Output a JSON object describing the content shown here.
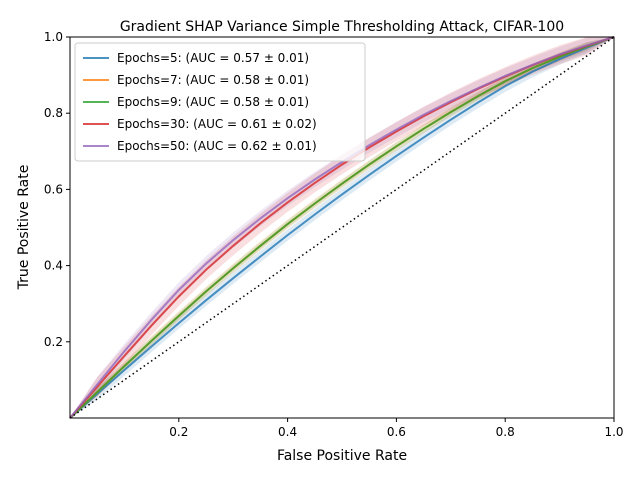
{
  "chart_data": {
    "type": "line",
    "title": "Gradient SHAP Variance Simple Thresholding Attack, CIFAR-100",
    "xlabel": "False Positive Rate",
    "ylabel": "True Positive Rate",
    "xlim": [
      0,
      1
    ],
    "ylim": [
      0,
      1
    ],
    "x_ticks": [
      "0.2",
      "0.4",
      "0.6",
      "0.8",
      "1.0"
    ],
    "y_ticks": [
      "0.2",
      "0.4",
      "0.6",
      "0.8",
      "1.0"
    ],
    "grid": false,
    "legend_position": "top-left",
    "x": [
      0,
      0.05,
      0.1,
      0.15,
      0.2,
      0.25,
      0.3,
      0.35,
      0.4,
      0.45,
      0.5,
      0.55,
      0.6,
      0.65,
      0.7,
      0.75,
      0.8,
      0.85,
      0.9,
      0.95,
      1.0
    ],
    "series": [
      {
        "name": "Epochs=5: (AUC = 0.57 ± 0.01)",
        "color": "#1f77b4",
        "values": [
          0,
          0.063,
          0.126,
          0.188,
          0.249,
          0.309,
          0.367,
          0.424,
          0.48,
          0.534,
          0.587,
          0.638,
          0.688,
          0.736,
          0.783,
          0.828,
          0.871,
          0.909,
          0.942,
          0.972,
          1.0
        ],
        "band": 0.015
      },
      {
        "name": "Epochs=7: (AUC = 0.58 ± 0.01)",
        "color": "#ff7f0e",
        "values": [
          0,
          0.068,
          0.136,
          0.203,
          0.268,
          0.332,
          0.393,
          0.452,
          0.509,
          0.563,
          0.615,
          0.665,
          0.713,
          0.759,
          0.803,
          0.845,
          0.884,
          0.918,
          0.948,
          0.975,
          1.0
        ],
        "band": 0.012
      },
      {
        "name": "Epochs=9: (AUC = 0.58 ± 0.01)",
        "color": "#2ca02c",
        "values": [
          0,
          0.068,
          0.136,
          0.203,
          0.268,
          0.332,
          0.393,
          0.452,
          0.509,
          0.563,
          0.615,
          0.665,
          0.713,
          0.759,
          0.803,
          0.845,
          0.884,
          0.918,
          0.948,
          0.975,
          1.0
        ],
        "band": 0.01
      },
      {
        "name": "Epochs=30: (AUC = 0.61 ± 0.02)",
        "color": "#d62728",
        "values": [
          0,
          0.082,
          0.163,
          0.243,
          0.319,
          0.389,
          0.452,
          0.511,
          0.566,
          0.617,
          0.665,
          0.71,
          0.752,
          0.792,
          0.829,
          0.864,
          0.896,
          0.926,
          0.953,
          0.977,
          1.0
        ],
        "band": 0.025
      },
      {
        "name": "Epochs=50: (AUC = 0.62 ± 0.01)",
        "color": "#9467bd",
        "values": [
          0,
          0.088,
          0.175,
          0.258,
          0.336,
          0.405,
          0.467,
          0.524,
          0.577,
          0.626,
          0.672,
          0.716,
          0.757,
          0.796,
          0.832,
          0.866,
          0.898,
          0.927,
          0.954,
          0.978,
          1.0
        ],
        "band": 0.02
      }
    ],
    "reference_line": {
      "style": "dotted",
      "color": "#000000",
      "from": [
        0,
        0
      ],
      "to": [
        1,
        1
      ]
    }
  }
}
